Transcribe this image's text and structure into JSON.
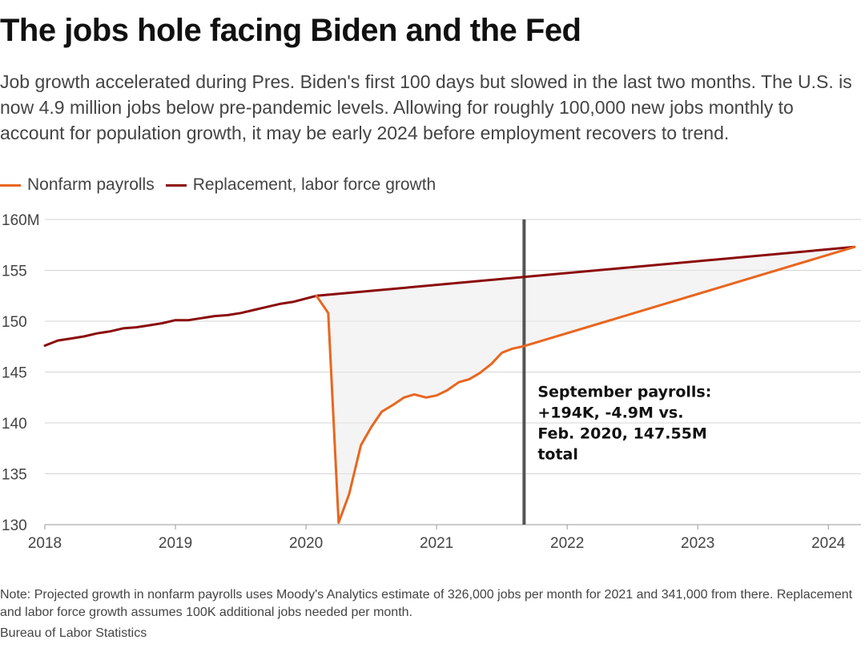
{
  "chart_data": {
    "type": "line",
    "title": "The jobs hole facing Biden and the Fed",
    "subtitle": "Job growth accelerated during Pres. Biden's first 100 days but slowed in the last two months. The U.S. is now 4.9 million jobs below pre-pandemic levels. Allowing for roughly 100,000 new jobs monthly to account for population growth, it may be early 2024 before employment recovers to trend.",
    "xlabel": "",
    "ylabel": "",
    "xlim": [
      2018,
      2024.25
    ],
    "ylim": [
      130,
      160
    ],
    "x_ticks": [
      {
        "value": 2018,
        "label": "2018"
      },
      {
        "value": 2019,
        "label": "2019"
      },
      {
        "value": 2020,
        "label": "2020"
      },
      {
        "value": 2021,
        "label": "2021"
      },
      {
        "value": 2022,
        "label": "2022"
      },
      {
        "value": 2023,
        "label": "2023"
      },
      {
        "value": 2024,
        "label": "2024"
      }
    ],
    "y_ticks": [
      {
        "value": 130,
        "label": "130"
      },
      {
        "value": 135,
        "label": "135"
      },
      {
        "value": 140,
        "label": "140"
      },
      {
        "value": 145,
        "label": "145"
      },
      {
        "value": 150,
        "label": "150"
      },
      {
        "value": 155,
        "label": "155"
      },
      {
        "value": 160,
        "label": "160M"
      }
    ],
    "grid": true,
    "legend_position": "top-left",
    "series": [
      {
        "name": "Nonfarm payrolls",
        "color": "#e8661f",
        "x": [
          2020.08,
          2020.17,
          2020.25,
          2020.33,
          2020.42,
          2020.5,
          2020.58,
          2020.67,
          2020.75,
          2020.83,
          2020.92,
          2021.0,
          2021.08,
          2021.17,
          2021.25,
          2021.33,
          2021.42,
          2021.5,
          2021.58,
          2021.67,
          2024.2
        ],
        "values": [
          152.5,
          150.8,
          130.2,
          133.0,
          137.8,
          139.6,
          141.1,
          141.8,
          142.5,
          142.8,
          142.5,
          142.7,
          143.2,
          144.0,
          144.3,
          144.9,
          145.8,
          146.9,
          147.3,
          147.55,
          157.3
        ]
      },
      {
        "name": "Replacement, labor force growth",
        "color": "#8b0a0a",
        "x": [
          2018.0,
          2018.1,
          2018.2,
          2018.3,
          2018.4,
          2018.5,
          2018.6,
          2018.7,
          2018.8,
          2018.9,
          2019.0,
          2019.1,
          2019.2,
          2019.3,
          2019.4,
          2019.5,
          2019.6,
          2019.7,
          2019.8,
          2019.9,
          2020.08,
          2024.2
        ],
        "values": [
          147.6,
          148.1,
          148.3,
          148.5,
          148.8,
          149.0,
          149.3,
          149.4,
          149.6,
          149.8,
          150.1,
          150.1,
          150.3,
          150.5,
          150.6,
          150.8,
          151.1,
          151.4,
          151.7,
          151.9,
          152.5,
          157.3
        ]
      }
    ],
    "reference_line": {
      "x": 2021.67
    },
    "annotation": {
      "x": 2021.67,
      "lines": [
        "September payrolls:",
        "+194K, -4.9M vs.",
        "Feb. 2020, 147.55M",
        "total"
      ]
    },
    "shaded_gap": {
      "color": "#e9e9e9",
      "opacity": 0.5
    }
  },
  "note": "Note: Projected growth in nonfarm payrolls uses Moody's Analytics estimate of 326,000 jobs per month for 2021 and 341,000 from there. Replacement and labor force growth assumes 100K additional jobs needed per month.",
  "source": "Bureau of Labor Statistics"
}
